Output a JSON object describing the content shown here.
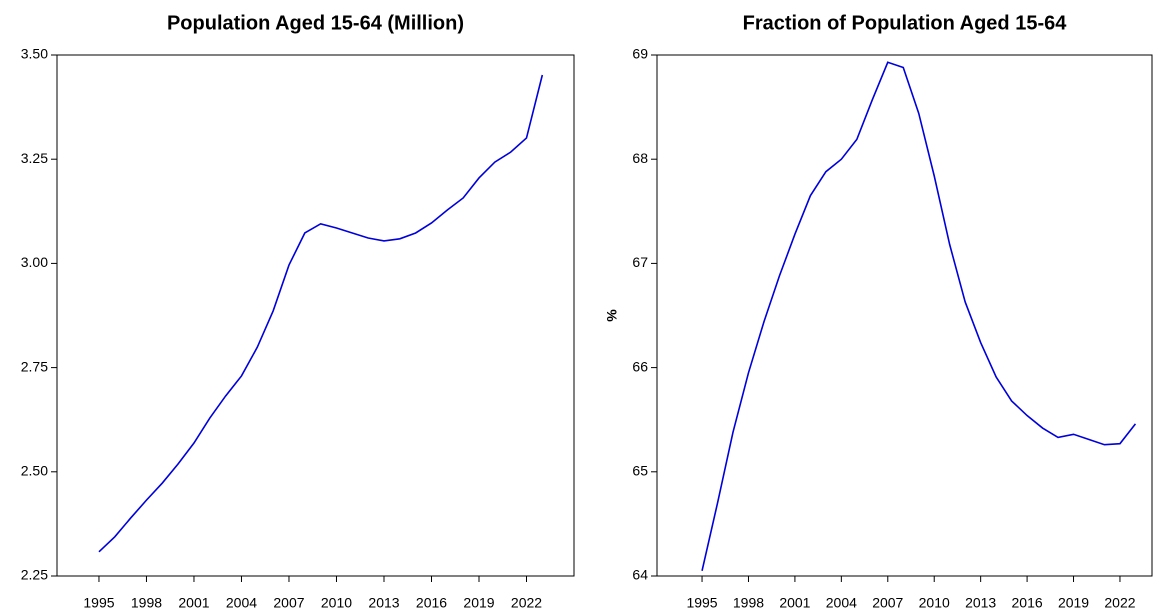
{
  "chart_data": [
    {
      "type": "line",
      "title": "Population Aged 15-64 (Million)",
      "x": [
        1995,
        1996,
        1997,
        1998,
        1999,
        2000,
        2001,
        2002,
        2003,
        2004,
        2005,
        2006,
        2007,
        2008,
        2009,
        2010,
        2011,
        2012,
        2013,
        2014,
        2015,
        2016,
        2017,
        2018,
        2019,
        2020,
        2021,
        2022,
        2023
      ],
      "series": [
        {
          "color": "#0000dd",
          "values": [
            2.308,
            2.344,
            2.389,
            2.432,
            2.473,
            2.519,
            2.569,
            2.629,
            2.682,
            2.73,
            2.799,
            2.886,
            2.996,
            3.073,
            3.095,
            3.085,
            3.073,
            3.061,
            3.054,
            3.059,
            3.073,
            3.097,
            3.128,
            3.157,
            3.205,
            3.243,
            3.267,
            3.301,
            3.452
          ]
        }
      ],
      "xlim": [
        1992.35,
        2025.0
      ],
      "xticks": [
        1995,
        1998,
        2001,
        2004,
        2007,
        2010,
        2013,
        2016,
        2019,
        2022
      ],
      "ylim": [
        2.25,
        3.5
      ],
      "yticks": [
        2.25,
        {
          "value": 2.5,
          "label": "2.50"
        },
        2.75,
        {
          "value": 3.0,
          "label": "3.00"
        },
        3.25,
        {
          "value": 3.5,
          "label": "3.50"
        }
      ]
    },
    {
      "type": "line",
      "title": "Fraction of Population Aged 15-64",
      "ylabel": "%",
      "x": [
        1995,
        1996,
        1997,
        1998,
        1999,
        2000,
        2001,
        2002,
        2003,
        2004,
        2005,
        2006,
        2007,
        2008,
        2009,
        2010,
        2011,
        2012,
        2013,
        2014,
        2015,
        2016,
        2017,
        2018,
        2019,
        2020,
        2021,
        2022,
        2023
      ],
      "series": [
        {
          "color": "#0000dd",
          "values": [
            64.05,
            64.7,
            65.38,
            65.95,
            66.44,
            66.88,
            67.28,
            67.65,
            67.88,
            68.0,
            68.19,
            68.57,
            68.93,
            68.88,
            68.44,
            67.84,
            67.18,
            66.63,
            66.24,
            65.91,
            65.68,
            65.54,
            65.42,
            65.33,
            65.36,
            65.31,
            65.26,
            65.27,
            65.46
          ]
        }
      ],
      "xlim": [
        1992.09,
        2024.07
      ],
      "xticks": [
        1995,
        1998,
        2001,
        2004,
        2007,
        2010,
        2013,
        2016,
        2019,
        2022
      ],
      "ylim": [
        64,
        69
      ],
      "yticks": [
        64,
        65,
        66,
        67,
        68,
        69
      ]
    }
  ]
}
